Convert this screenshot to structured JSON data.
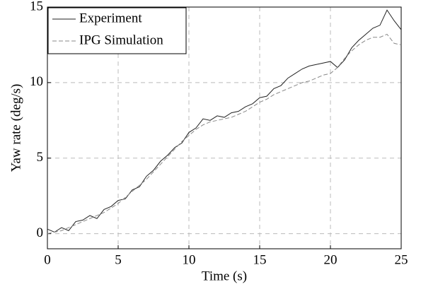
{
  "chart_data": {
    "type": "line",
    "xlabel": "Time (s)",
    "ylabel": "Yaw rate (deg/s)",
    "x": [
      0,
      0.5,
      1,
      1.5,
      2,
      2.5,
      3,
      3.5,
      4,
      4.5,
      5,
      5.5,
      6,
      6.5,
      7,
      7.5,
      8,
      8.5,
      9,
      9.5,
      10,
      10.5,
      11,
      11.5,
      12,
      12.5,
      13,
      13.5,
      14,
      14.5,
      15,
      15.5,
      16,
      16.5,
      17,
      17.5,
      18,
      18.5,
      19,
      19.5,
      20,
      20.5,
      21,
      21.5,
      22,
      22.5,
      23,
      23.5,
      24,
      24.5,
      25
    ],
    "series": [
      {
        "name": "Experiment",
        "color": "#222222",
        "dash": false,
        "values": [
          0.3,
          0.1,
          0.4,
          0.2,
          0.8,
          0.9,
          1.2,
          1.0,
          1.6,
          1.8,
          2.2,
          2.3,
          2.9,
          3.1,
          3.8,
          4.2,
          4.8,
          5.2,
          5.7,
          6.0,
          6.7,
          7.0,
          7.6,
          7.5,
          7.8,
          7.7,
          8.0,
          8.1,
          8.4,
          8.6,
          9.0,
          9.1,
          9.6,
          9.8,
          10.3,
          10.6,
          10.9,
          11.1,
          11.2,
          11.3,
          11.4,
          11.0,
          11.5,
          12.3,
          12.8,
          13.2,
          13.6,
          13.8,
          14.8,
          14.1,
          13.5
        ]
      },
      {
        "name": "IPG Simulation",
        "color": "#888888",
        "dash": true,
        "values": [
          0.0,
          0.1,
          0.2,
          0.4,
          0.6,
          0.8,
          1.0,
          1.2,
          1.4,
          1.7,
          2.0,
          2.4,
          2.8,
          3.2,
          3.6,
          4.1,
          4.6,
          5.1,
          5.6,
          6.1,
          6.5,
          6.9,
          7.2,
          7.4,
          7.5,
          7.6,
          7.7,
          7.9,
          8.1,
          8.4,
          8.7,
          8.9,
          9.2,
          9.4,
          9.6,
          9.8,
          10.0,
          10.1,
          10.3,
          10.5,
          10.6,
          11.0,
          11.6,
          12.1,
          12.5,
          12.8,
          13.0,
          13.0,
          13.2,
          12.6,
          12.5
        ]
      }
    ],
    "xlim": [
      0,
      25
    ],
    "xticks": [
      0,
      5,
      10,
      15,
      20,
      25
    ],
    "ylim": [
      -1,
      15
    ],
    "yticks": [
      0,
      5,
      10,
      15
    ],
    "grid": true,
    "legend": "upper-left"
  }
}
